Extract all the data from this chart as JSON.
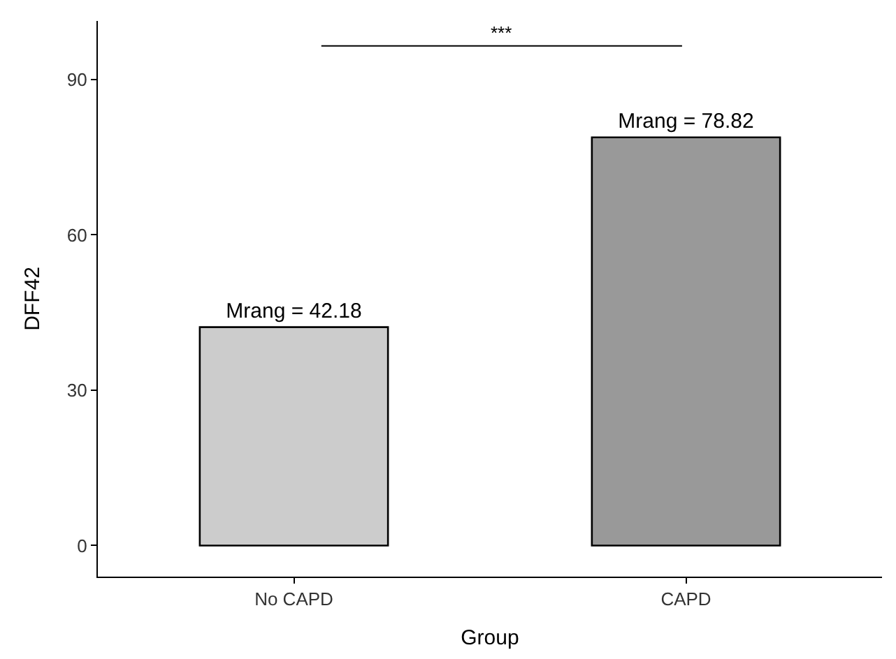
{
  "chart_data": {
    "type": "bar",
    "xlabel": "Group",
    "ylabel": "DFF42",
    "categories": [
      "No CAPD",
      "CAPD"
    ],
    "values": [
      42.18,
      78.82
    ],
    "colors": [
      "#cccccc",
      "#999999"
    ],
    "value_labels": [
      "Mrang = 42.18",
      "Mrang = 78.82"
    ],
    "ylim": [
      -6,
      101.3
    ],
    "yticks": [
      0,
      30,
      60,
      90
    ],
    "annotations": [
      "***"
    ]
  }
}
